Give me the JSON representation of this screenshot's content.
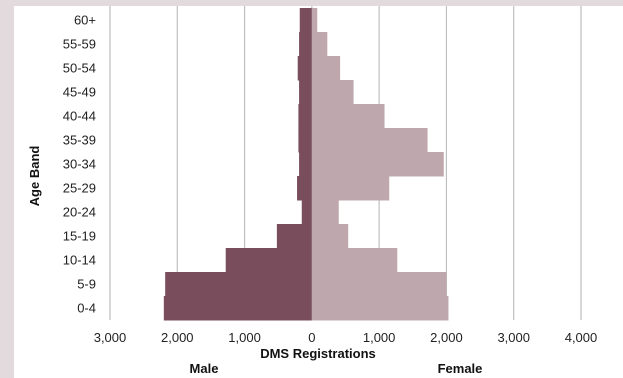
{
  "chart_data": {
    "type": "bar",
    "orientation": "horizontal",
    "stacking": "population-pyramid",
    "categories": [
      "60+",
      "55-59",
      "50-54",
      "45-49",
      "40-44",
      "35-39",
      "30-34",
      "25-29",
      "20-24",
      "15-19",
      "10-14",
      "5-9",
      "0-4"
    ],
    "series": [
      {
        "name": "Male",
        "values": [
          180,
          190,
          210,
          190,
          200,
          200,
          190,
          220,
          150,
          520,
          1280,
          2180,
          2200
        ],
        "color": "#7a4d5c"
      },
      {
        "name": "Female",
        "values": [
          80,
          230,
          420,
          620,
          1080,
          1720,
          1960,
          1150,
          400,
          540,
          1270,
          2000,
          2030
        ],
        "color": "#bfa7ae"
      }
    ],
    "xlabel": "DMS Registrations",
    "ylabel": "Age Band",
    "xlim": [
      -3000,
      4000
    ],
    "xticks": [
      -3000,
      -2000,
      -1000,
      0,
      1000,
      2000,
      3000,
      4000
    ],
    "xtick_labels": [
      "3,000",
      "2,000",
      "1,000",
      "0",
      "1,000",
      "2,000",
      "3,000",
      "4,000"
    ],
    "side_labels": {
      "left": "Male",
      "right": "Female"
    },
    "grid": "vertical",
    "gridline_color": "#bfbfbf"
  }
}
